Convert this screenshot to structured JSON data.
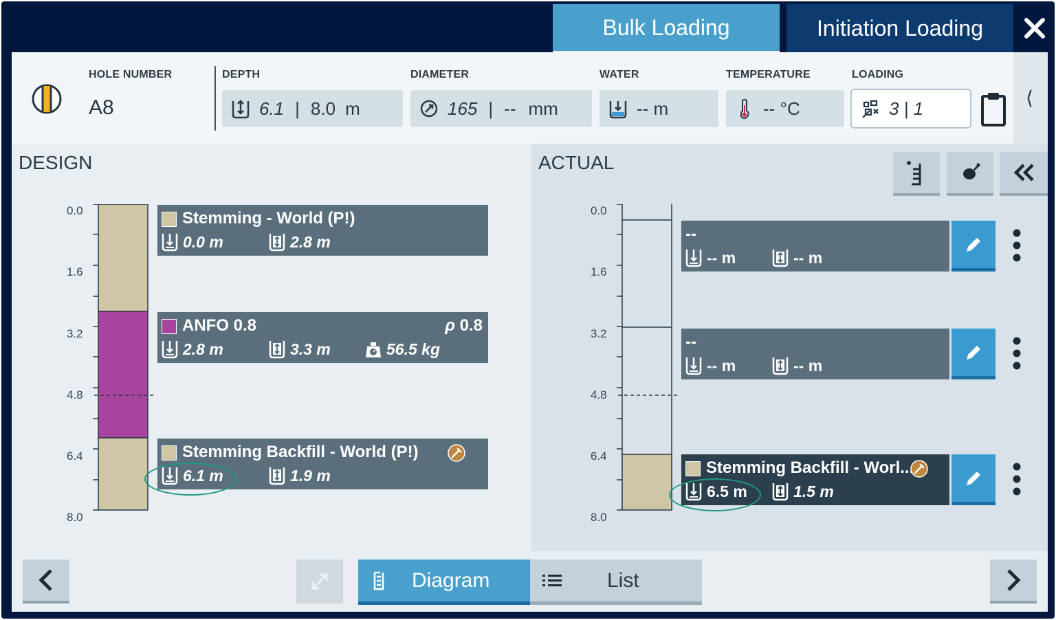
{
  "tabs": {
    "bulk": "Bulk Loading",
    "initiation": "Initiation Loading"
  },
  "header": {
    "hole_number_label": "HOLE NUMBER",
    "hole_number": "A8",
    "depth_label": "DEPTH",
    "depth_actual": "6.1",
    "depth_design": "8.0",
    "depth_unit": "m",
    "diameter_label": "DIAMETER",
    "diameter_actual": "165",
    "diameter_design": "--",
    "diameter_unit": "mm",
    "water_label": "WATER",
    "water_value": "-- m",
    "temperature_label": "TEMPERATURE",
    "temperature_value": "-- °C",
    "loading_label": "LOADING",
    "loading_value": "3 | 1",
    "collapse_glyph": "⟨"
  },
  "design": {
    "title": "DESIGN",
    "ticks": [
      "0.0",
      "1.6",
      "3.2",
      "4.8",
      "6.4",
      "8.0"
    ],
    "decks": [
      {
        "name": "Stemming - World (P!)",
        "top": "0.0 m",
        "length": "2.8 m",
        "color": "#cfc6a6"
      },
      {
        "name": "ANFO 0.8",
        "density_symbol": "ρ",
        "density": "0.8",
        "top": "2.8 m",
        "length": "3.3 m",
        "mass": "56.5 kg",
        "color": "#a8449e"
      },
      {
        "name": "Stemming Backfill - World (P!)",
        "top": "6.1 m",
        "length": "1.9 m",
        "color": "#cfc6a6"
      }
    ]
  },
  "actual": {
    "title": "ACTUAL",
    "ticks": [
      "0.0",
      "1.6",
      "3.2",
      "4.8",
      "6.4",
      "8.0"
    ],
    "decks": [
      {
        "name": "--",
        "top": "-- m",
        "length": "-- m"
      },
      {
        "name": "--",
        "top": "-- m",
        "length": "-- m"
      },
      {
        "name": "Stemming Backfill - Worl...",
        "top": "6.5 m",
        "length": "1.5 m",
        "color": "#cfc6a6"
      }
    ]
  },
  "footer": {
    "diagram_label": "Diagram",
    "list_label": "List"
  },
  "colors": {
    "accent": "#4aa0cc",
    "navy": "#02173d",
    "card": "#5a6e7c",
    "highlight": "#1f9a7c"
  }
}
